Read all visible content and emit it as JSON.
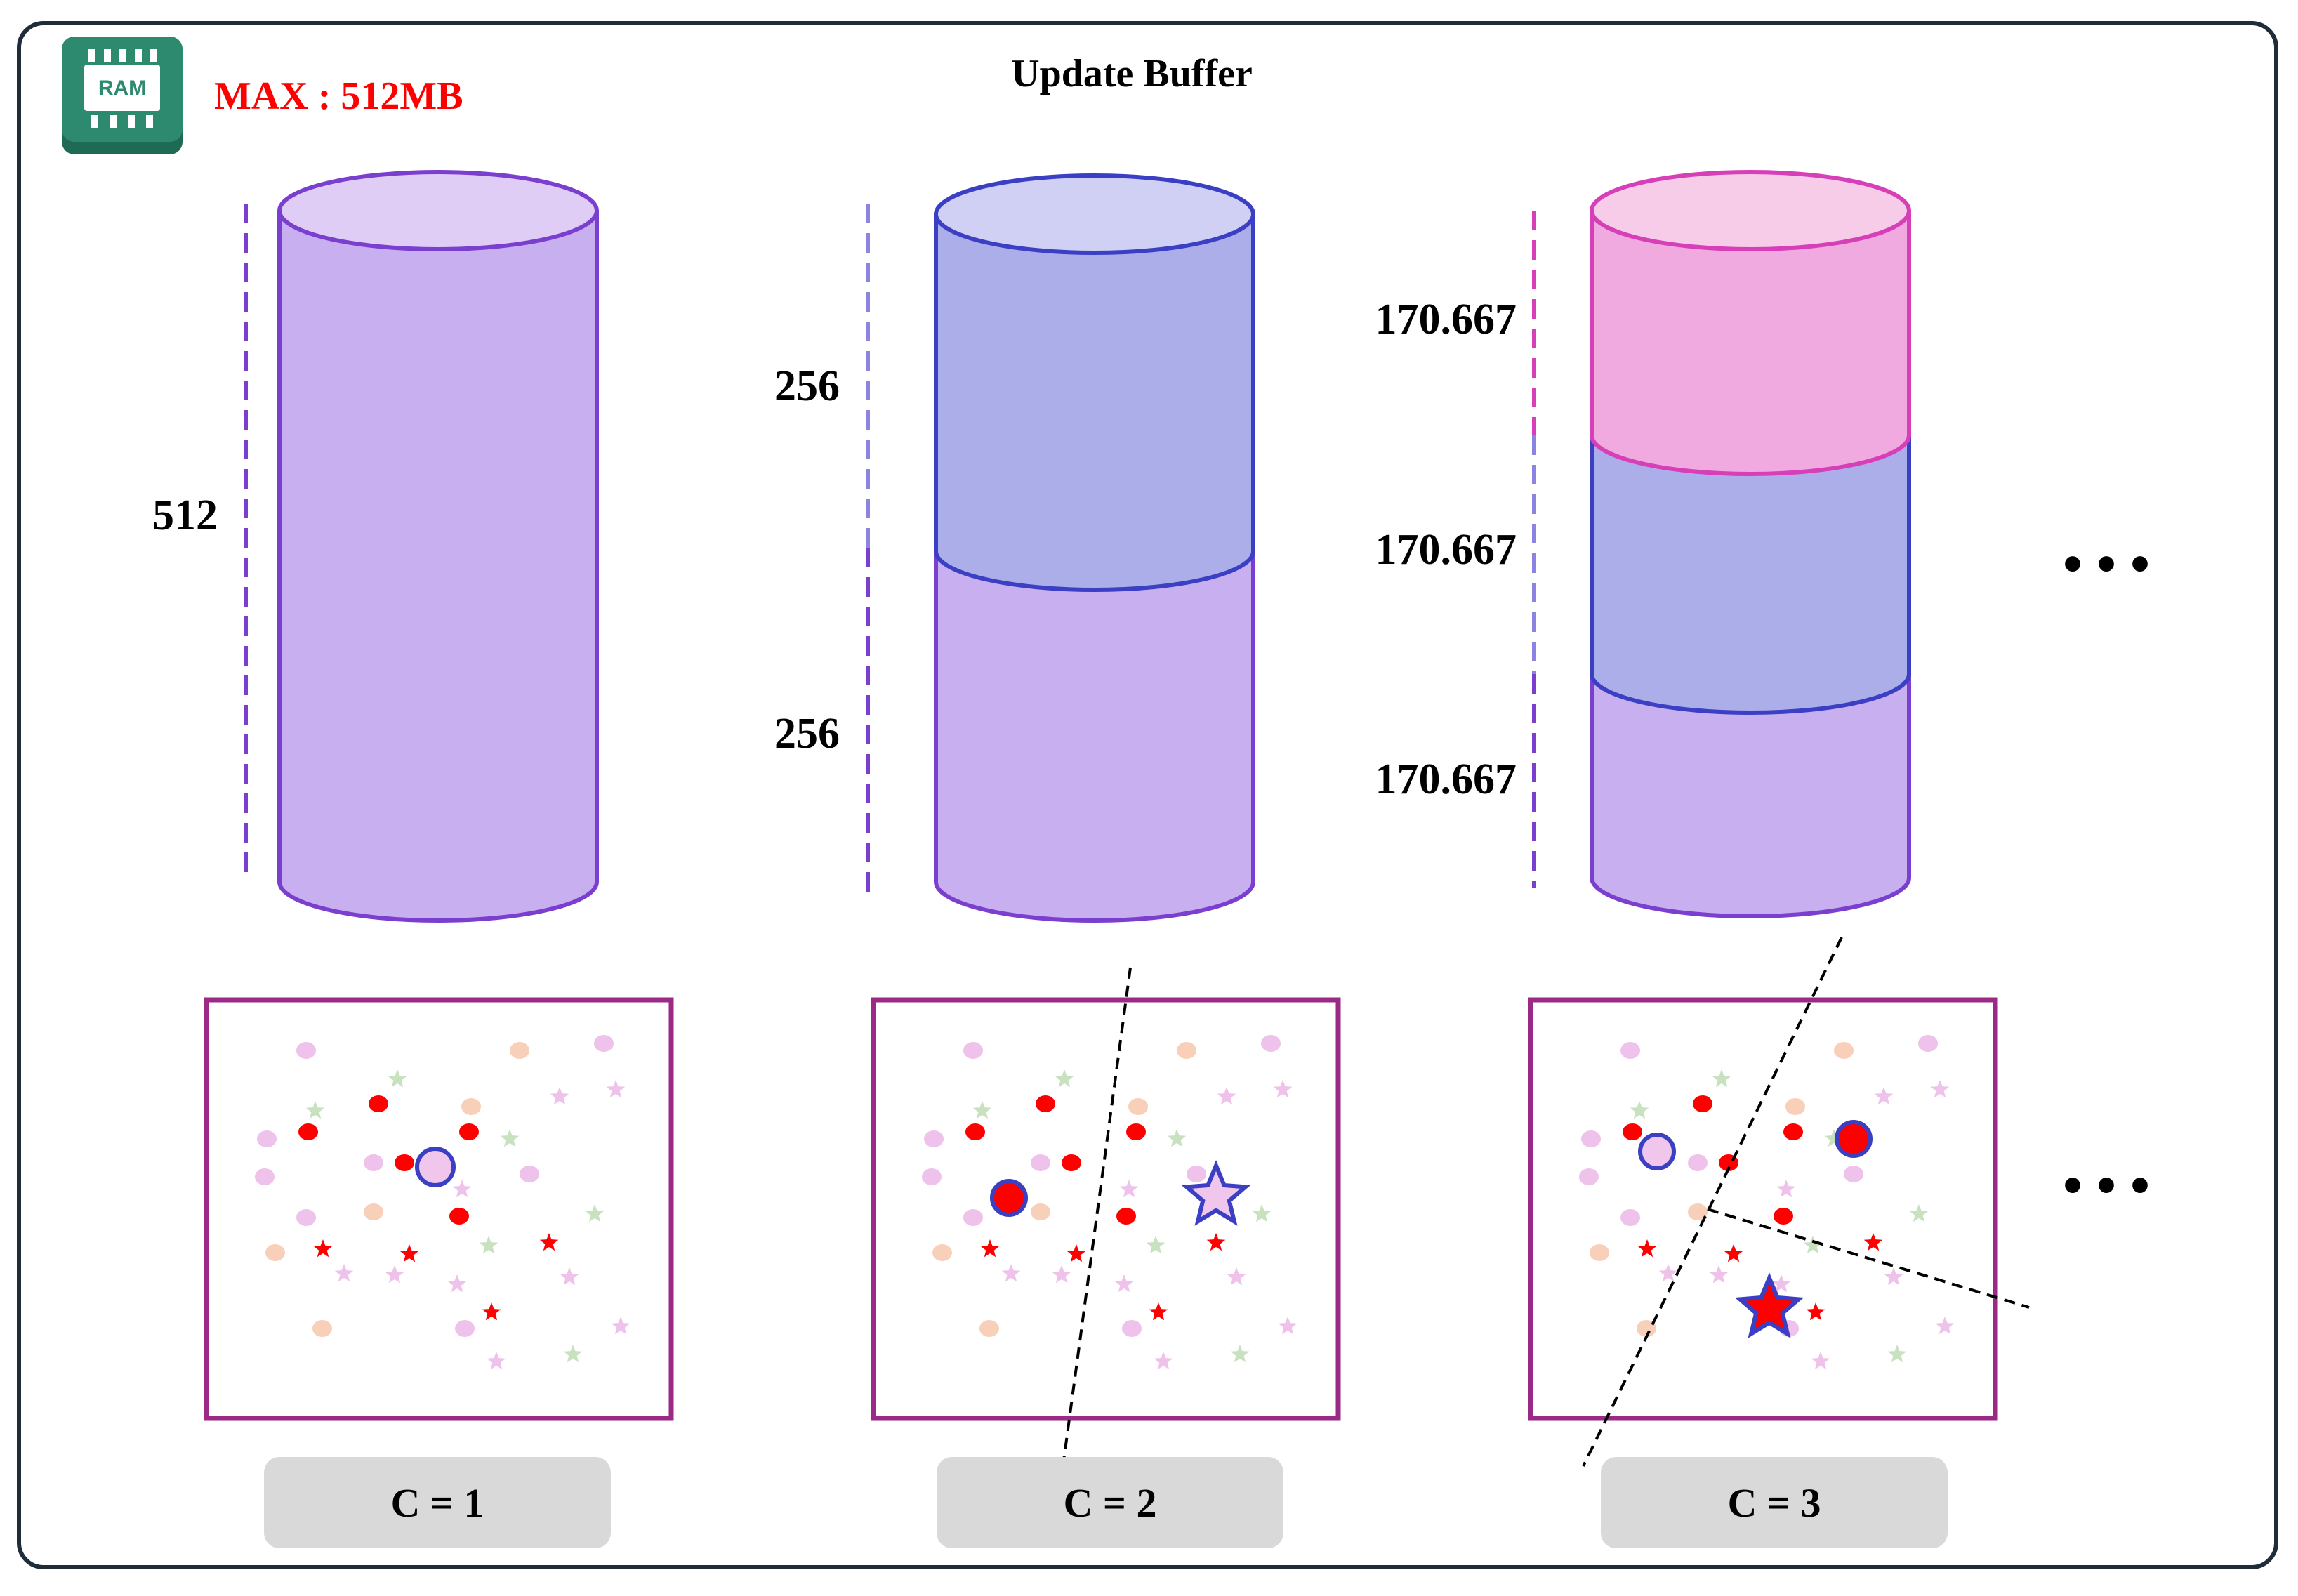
{
  "header": {
    "ram_icon_label": "RAM",
    "max_memory": "MAX : 512MB",
    "title": "Update Buffer"
  },
  "colors": {
    "class_1": "#7b3fd0",
    "class_2": "#3a3fc4",
    "class_3": "#d63fb8",
    "box_border": "#9b2a86",
    "max_text": "#ff0000",
    "frame": "#1f2d3a",
    "ram_icon": "#2e7a62"
  },
  "stage1": {
    "label": "C = 1",
    "segments": [
      {
        "value": "512",
        "class": 1
      }
    ]
  },
  "stage2": {
    "label": "C = 2",
    "segments": [
      {
        "value": "256",
        "class": 2
      },
      {
        "value": "256",
        "class": 1
      }
    ]
  },
  "stage3": {
    "label": "C = 3",
    "segments": [
      {
        "value": "170.667",
        "class": 3
      },
      {
        "value": "170.667",
        "class": 2
      },
      {
        "value": "170.667",
        "class": 1
      }
    ]
  },
  "ellipsis_top": "• • •",
  "ellipsis_bottom": "• • •"
}
